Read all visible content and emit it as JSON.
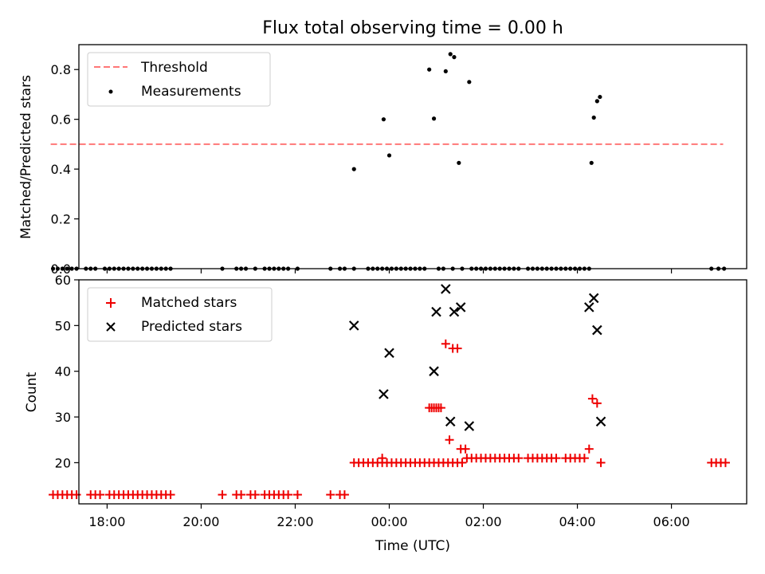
{
  "chart_data": {
    "title": "Flux total observing time = 0.00 h",
    "type": "scatter",
    "x_axis": {
      "label": "Time (UTC)",
      "unit": "hours relative to 00:00 UTC (negative = previous day)",
      "range": [
        -6.6,
        7.6
      ],
      "ticks": [
        -6,
        -4,
        -2,
        0,
        2,
        4,
        6
      ],
      "tick_labels": [
        "18:00",
        "20:00",
        "22:00",
        "00:00",
        "02:00",
        "04:00",
        "06:00"
      ]
    },
    "panels": [
      {
        "ylabel": "Matched/Predicted stars",
        "ylim": [
          0,
          0.9
        ],
        "yticks": [
          0.0,
          0.2,
          0.4,
          0.6,
          0.8
        ],
        "ytick_labels": [
          "0.0",
          "0.2",
          "0.4",
          "0.6",
          "0.8"
        ],
        "legend": {
          "position": "top-left",
          "entries": [
            "Threshold",
            "Measurements"
          ]
        },
        "threshold": {
          "name": "Threshold",
          "value": 0.5,
          "x": [
            -7.2,
            7.1
          ],
          "color": "#ff7777",
          "style": "dashed"
        },
        "series": [
          {
            "name": "Measurements",
            "marker": "dot",
            "color": "#000000",
            "x": [
              -7.15,
              -7.05,
              -6.95,
              -6.85,
              -6.75,
              -6.65,
              -6.45,
              -6.35,
              -6.25,
              -6.05,
              -5.95,
              -5.85,
              -5.75,
              -5.65,
              -5.55,
              -5.45,
              -5.35,
              -5.25,
              -5.15,
              -5.05,
              -4.95,
              -4.85,
              -4.75,
              -4.65,
              -3.55,
              -3.25,
              -3.15,
              -3.05,
              -2.85,
              -2.65,
              -2.55,
              -2.45,
              -2.35,
              -2.25,
              -2.15,
              -1.95,
              -1.25,
              -1.05,
              -0.95,
              -0.75,
              -0.45,
              -0.35,
              -0.25,
              -0.15,
              -0.05,
              0.05,
              0.15,
              0.25,
              0.35,
              0.45,
              0.55,
              0.65,
              0.75,
              1.05,
              1.15,
              1.35,
              1.55,
              1.75,
              1.85,
              1.95,
              2.05,
              2.15,
              2.25,
              2.35,
              2.45,
              2.55,
              2.65,
              2.75,
              2.95,
              3.05,
              3.15,
              3.25,
              3.35,
              3.45,
              3.55,
              3.65,
              3.75,
              3.85,
              3.95,
              4.05,
              4.15,
              4.25,
              6.85,
              7.0,
              7.12,
              -0.75,
              -0.12,
              0.0,
              0.85,
              0.95,
              1.2,
              1.3,
              1.38,
              1.48,
              1.7,
              4.3,
              4.35,
              4.42,
              4.48
            ],
            "y": [
              0,
              0,
              0,
              0,
              0,
              0,
              0,
              0,
              0,
              0,
              0,
              0,
              0,
              0,
              0,
              0,
              0,
              0,
              0,
              0,
              0,
              0,
              0,
              0,
              0,
              0,
              0,
              0,
              0,
              0,
              0,
              0,
              0,
              0,
              0,
              0,
              0,
              0,
              0,
              0,
              0,
              0,
              0,
              0,
              0,
              0,
              0,
              0,
              0,
              0,
              0,
              0,
              0,
              0,
              0,
              0,
              0,
              0,
              0,
              0,
              0,
              0,
              0,
              0,
              0,
              0,
              0,
              0,
              0,
              0,
              0,
              0,
              0,
              0,
              0,
              0,
              0,
              0,
              0,
              0,
              0,
              0,
              0,
              0,
              0,
              0.4,
              0.6,
              0.455,
              0.8,
              0.603,
              0.793,
              0.862,
              0.85,
              0.425,
              0.75,
              0.425,
              0.607,
              0.673,
              0.69
            ]
          }
        ]
      },
      {
        "ylabel": "Count",
        "ylim": [
          11,
          60
        ],
        "yticks": [
          20,
          30,
          40,
          50,
          60
        ],
        "ytick_labels": [
          "20",
          "30",
          "40",
          "50",
          "60"
        ],
        "legend": {
          "position": "top-left",
          "entries": [
            "Matched stars",
            "Predicted stars"
          ]
        },
        "series": [
          {
            "name": "Matched stars",
            "marker": "plus",
            "color": "#ee0000",
            "x": [
              -7.15,
              -7.05,
              -6.95,
              -6.85,
              -6.75,
              -6.65,
              -6.35,
              -6.25,
              -6.15,
              -5.95,
              -5.85,
              -5.75,
              -5.65,
              -5.55,
              -5.45,
              -5.35,
              -5.25,
              -5.15,
              -5.05,
              -4.95,
              -4.85,
              -4.75,
              -4.65,
              -3.55,
              -3.25,
              -3.15,
              -2.95,
              -2.85,
              -2.65,
              -2.55,
              -2.45,
              -2.35,
              -2.25,
              -2.15,
              -1.95,
              -1.25,
              -1.05,
              -0.95,
              -0.75,
              -0.65,
              -0.55,
              -0.45,
              -0.35,
              -0.25,
              -0.15,
              -0.05,
              0.05,
              0.15,
              0.25,
              0.35,
              0.45,
              0.55,
              0.65,
              0.75,
              0.85,
              0.95,
              1.05,
              1.15,
              1.25,
              1.35,
              1.45,
              1.55,
              1.65,
              1.75,
              1.85,
              1.95,
              2.05,
              2.15,
              2.25,
              2.35,
              2.45,
              2.55,
              2.65,
              2.75,
              2.95,
              3.05,
              3.15,
              3.25,
              3.35,
              3.45,
              3.55,
              3.75,
              3.85,
              3.95,
              4.05,
              4.15,
              4.25,
              4.32,
              4.42,
              4.5,
              6.85,
              6.95,
              7.05,
              7.15,
              -0.15,
              0.85,
              0.9,
              0.95,
              1.0,
              1.05,
              1.1,
              1.2,
              1.28,
              1.35,
              1.45,
              1.52,
              1.62
            ],
            "y": [
              13,
              13,
              13,
              13,
              13,
              13,
              13,
              13,
              13,
              13,
              13,
              13,
              13,
              13,
              13,
              13,
              13,
              13,
              13,
              13,
              13,
              13,
              13,
              13,
              13,
              13,
              13,
              13,
              13,
              13,
              13,
              13,
              13,
              13,
              13,
              13,
              13,
              13,
              20,
              20,
              20,
              20,
              20,
              20,
              20,
              20,
              20,
              20,
              20,
              20,
              20,
              20,
              20,
              20,
              20,
              20,
              20,
              20,
              20,
              20,
              20,
              20,
              21,
              21,
              21,
              21,
              21,
              21,
              21,
              21,
              21,
              21,
              21,
              21,
              21,
              21,
              21,
              21,
              21,
              21,
              21,
              21,
              21,
              21,
              21,
              21,
              23,
              34,
              33,
              20,
              20,
              20,
              20,
              20,
              21,
              32,
              32,
              32,
              32,
              32,
              32,
              46,
              25,
              45,
              45,
              23,
              23
            ],
            "x_fix": true
          },
          {
            "name": "Predicted stars",
            "marker": "cross",
            "color": "#000000",
            "x": [
              -0.75,
              -0.12,
              0.0,
              0.95,
              1.0,
              1.2,
              1.3,
              1.38,
              1.52,
              1.7,
              4.25,
              4.35,
              4.42,
              4.5
            ],
            "y": [
              50,
              35,
              44,
              40,
              53,
              58,
              29,
              53,
              54,
              28,
              54,
              56,
              49,
              29
            ]
          }
        ]
      }
    ]
  }
}
